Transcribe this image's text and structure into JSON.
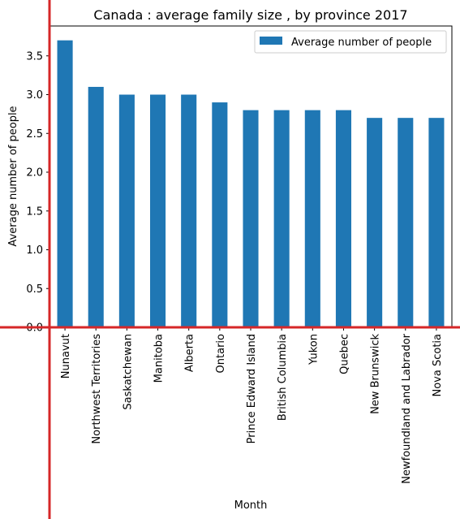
{
  "chart_data": {
    "type": "bar",
    "title": "Canada : average family size , by province 2017",
    "xlabel": "Month",
    "ylabel": "Average number of people",
    "categories": [
      "Nunavut",
      "Northwest Territories",
      "Saskatchewan",
      "Manitoba",
      "Alberta",
      "Ontario",
      "Prince Edward Island",
      "British Columbia",
      "Yukon",
      "Quebec",
      "New Brunswick",
      "Newfoundland and Labrador",
      "Nova Scotia"
    ],
    "series": [
      {
        "name": "Average number of people",
        "values": [
          3.7,
          3.1,
          3.0,
          3.0,
          3.0,
          2.9,
          2.8,
          2.8,
          2.8,
          2.8,
          2.7,
          2.7,
          2.7
        ],
        "color": "#1f77b4"
      }
    ],
    "ylim": [
      0,
      3.885
    ],
    "yticks": [
      "0.0",
      "0.5",
      "1.0",
      "1.5",
      "2.0",
      "2.5",
      "3.0",
      "3.5"
    ],
    "legend": "top-right",
    "grid": false
  },
  "colors": {
    "bar": "#1f77b4",
    "crosshair": "#d62728",
    "axes": "#000000"
  }
}
